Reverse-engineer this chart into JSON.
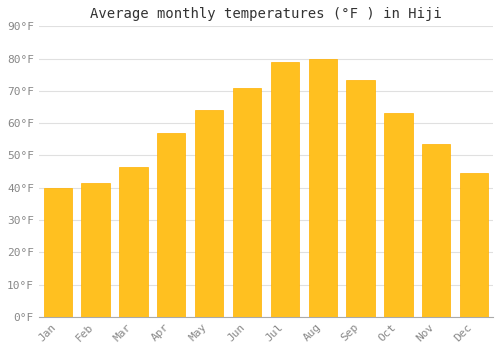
{
  "title": "Average monthly temperatures (°F ) in Hiji",
  "months": [
    "Jan",
    "Feb",
    "Mar",
    "Apr",
    "May",
    "Jun",
    "Jul",
    "Aug",
    "Sep",
    "Oct",
    "Nov",
    "Dec"
  ],
  "values": [
    40,
    41.5,
    46.5,
    57,
    64,
    71,
    79,
    80,
    73.5,
    63,
    53.5,
    44.5
  ],
  "bar_color_face": "#FFC020",
  "bar_color_edge": "#FFB000",
  "background_color": "#FFFFFF",
  "plot_bg_color": "#FFFFFF",
  "grid_color": "#E0E0E0",
  "ylim": [
    0,
    90
  ],
  "yticks": [
    0,
    10,
    20,
    30,
    40,
    50,
    60,
    70,
    80,
    90
  ],
  "ytick_labels": [
    "0°F",
    "10°F",
    "20°F",
    "30°F",
    "40°F",
    "50°F",
    "60°F",
    "70°F",
    "80°F",
    "90°F"
  ],
  "title_fontsize": 10,
  "tick_fontsize": 8,
  "font_family": "monospace",
  "tick_color": "#888888",
  "bar_width": 0.75
}
